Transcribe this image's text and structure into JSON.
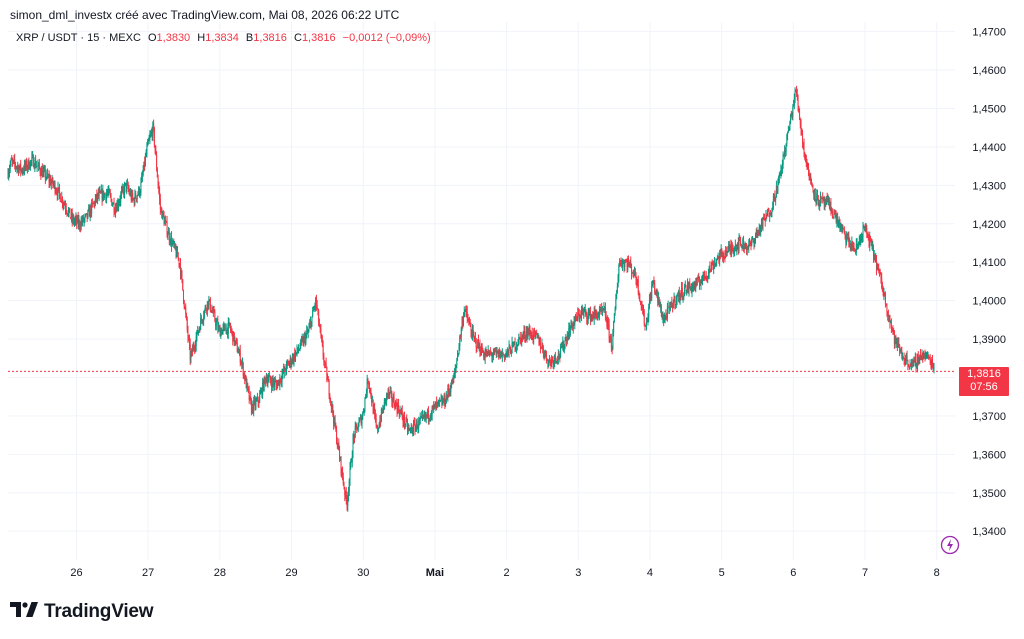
{
  "header": {
    "caption": "simon_dml_investx créé avec TradingView.com, Mai 08, 2026 06:22 UTC"
  },
  "legend": {
    "symbol": "XRP / USDT · 15 · MEXC",
    "open_label": "O",
    "open": "1,3830",
    "high_label": "H",
    "high": "1,3834",
    "low_label": "B",
    "low": "1,3816",
    "close_label": "C",
    "close": "1,3816",
    "change": "−0,0012 (−0,09%)"
  },
  "price_tag": {
    "price": "1,3816",
    "countdown": "07:56"
  },
  "brand": {
    "name": "TradingView",
    "logo": "tradingview-logo-icon"
  },
  "icons": {
    "bolt": "lightning-bolt-icon"
  },
  "colors": {
    "up": "#089981",
    "down": "#f23645",
    "grid": "#f0f3fa",
    "text": "#131722"
  },
  "chart_data": {
    "type": "candlestick",
    "title": "XRP / USDT · 15 · MEXC",
    "y_ticks": [
      "1,3400",
      "1,3500",
      "1,3600",
      "1,3700",
      "1,3800",
      "1,3900",
      "1,4000",
      "1,4100",
      "1,4200",
      "1,4300",
      "1,4400",
      "1,4500",
      "1,4600",
      "1,4700"
    ],
    "y_tick_values": [
      1.34,
      1.35,
      1.36,
      1.37,
      1.38,
      1.39,
      1.4,
      1.41,
      1.42,
      1.43,
      1.44,
      1.45,
      1.46,
      1.47
    ],
    "ylim": [
      1.3325,
      1.4725
    ],
    "x_ticks": [
      "26",
      "27",
      "28",
      "29",
      "30",
      "Mai",
      "2",
      "3",
      "4",
      "5",
      "6",
      "7",
      "8"
    ],
    "x_tick_days": [
      1,
      2,
      3,
      4,
      5,
      6,
      7,
      8,
      9,
      10,
      11,
      12,
      13
    ],
    "xlim": [
      0.045,
      13.255
    ],
    "last_price": 1.3816,
    "grid": true,
    "series_approx": [
      [
        0.045,
        1.433
      ],
      [
        0.1,
        1.436
      ],
      [
        0.25,
        1.434
      ],
      [
        0.4,
        1.4365
      ],
      [
        0.55,
        1.433
      ],
      [
        0.7,
        1.43
      ],
      [
        0.85,
        1.425
      ],
      [
        0.95,
        1.421
      ],
      [
        1.05,
        1.42
      ],
      [
        1.15,
        1.4215
      ],
      [
        1.3,
        1.427
      ],
      [
        1.45,
        1.428
      ],
      [
        1.55,
        1.424
      ],
      [
        1.7,
        1.43
      ],
      [
        1.8,
        1.426
      ],
      [
        1.9,
        1.429
      ],
      [
        2.0,
        1.44
      ],
      [
        2.08,
        1.445
      ],
      [
        2.18,
        1.424
      ],
      [
        2.3,
        1.417
      ],
      [
        2.45,
        1.41
      ],
      [
        2.6,
        1.385
      ],
      [
        2.75,
        1.395
      ],
      [
        2.85,
        1.4
      ],
      [
        3.0,
        1.392
      ],
      [
        3.15,
        1.393
      ],
      [
        3.3,
        1.385
      ],
      [
        3.45,
        1.372
      ],
      [
        3.55,
        1.374
      ],
      [
        3.65,
        1.38
      ],
      [
        3.8,
        1.378
      ],
      [
        3.95,
        1.383
      ],
      [
        4.1,
        1.387
      ],
      [
        4.25,
        1.392
      ],
      [
        4.35,
        1.4
      ],
      [
        4.45,
        1.386
      ],
      [
        4.55,
        1.375
      ],
      [
        4.65,
        1.363
      ],
      [
        4.78,
        1.347
      ],
      [
        4.88,
        1.365
      ],
      [
        5.0,
        1.37
      ],
      [
        5.08,
        1.38
      ],
      [
        5.2,
        1.366
      ],
      [
        5.35,
        1.376
      ],
      [
        5.5,
        1.372
      ],
      [
        5.65,
        1.366
      ],
      [
        5.85,
        1.369
      ],
      [
        6.0,
        1.372
      ],
      [
        6.15,
        1.374
      ],
      [
        6.28,
        1.38
      ],
      [
        6.42,
        1.398
      ],
      [
        6.55,
        1.39
      ],
      [
        6.7,
        1.386
      ],
      [
        6.85,
        1.386
      ],
      [
        7.0,
        1.386
      ],
      [
        7.15,
        1.389
      ],
      [
        7.3,
        1.392
      ],
      [
        7.45,
        1.39
      ],
      [
        7.6,
        1.384
      ],
      [
        7.75,
        1.386
      ],
      [
        7.9,
        1.393
      ],
      [
        8.05,
        1.397
      ],
      [
        8.2,
        1.396
      ],
      [
        8.38,
        1.397
      ],
      [
        8.48,
        1.388
      ],
      [
        8.58,
        1.41
      ],
      [
        8.7,
        1.41
      ],
      [
        8.82,
        1.406
      ],
      [
        8.95,
        1.393
      ],
      [
        9.05,
        1.405
      ],
      [
        9.2,
        1.395
      ],
      [
        9.35,
        1.4
      ],
      [
        9.5,
        1.403
      ],
      [
        9.65,
        1.404
      ],
      [
        9.8,
        1.407
      ],
      [
        9.95,
        1.411
      ],
      [
        10.1,
        1.413
      ],
      [
        10.25,
        1.415
      ],
      [
        10.4,
        1.414
      ],
      [
        10.55,
        1.419
      ],
      [
        10.7,
        1.424
      ],
      [
        10.82,
        1.432
      ],
      [
        10.95,
        1.445
      ],
      [
        11.05,
        1.455
      ],
      [
        11.15,
        1.44
      ],
      [
        11.25,
        1.431
      ],
      [
        11.35,
        1.426
      ],
      [
        11.5,
        1.425
      ],
      [
        11.62,
        1.421
      ],
      [
        11.75,
        1.416
      ],
      [
        11.88,
        1.413
      ],
      [
        12.0,
        1.419
      ],
      [
        12.12,
        1.413
      ],
      [
        12.22,
        1.406
      ],
      [
        12.32,
        1.398
      ],
      [
        12.42,
        1.39
      ],
      [
        12.55,
        1.385
      ],
      [
        12.68,
        1.383
      ],
      [
        12.8,
        1.386
      ],
      [
        12.9,
        1.385
      ],
      [
        12.97,
        1.383
      ]
    ],
    "ticks_per_day": 96
  }
}
